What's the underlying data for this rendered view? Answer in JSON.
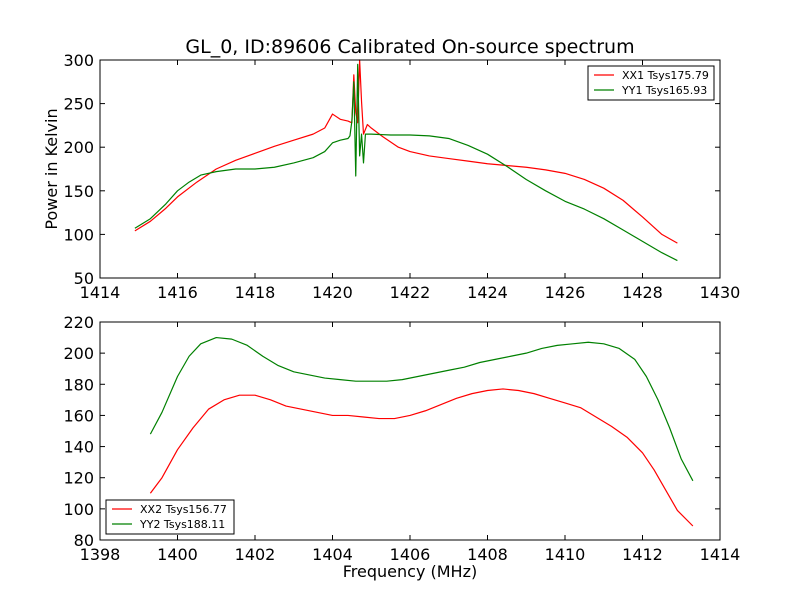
{
  "chart_data": [
    {
      "type": "line",
      "title": "GL_0, ID:89606 Calibrated On-source spectrum",
      "xlabel": "",
      "ylabel": "Power in Kelvin",
      "xlim": [
        1414,
        1430
      ],
      "ylim": [
        50,
        300
      ],
      "xticks": [
        1414,
        1416,
        1418,
        1420,
        1422,
        1424,
        1426,
        1428,
        1430
      ],
      "yticks": [
        50,
        100,
        150,
        200,
        250,
        300
      ],
      "grid": false,
      "legend": "top-right",
      "series": [
        {
          "name": "XX1 Tsys175.79",
          "color": "#ff0000",
          "points": [
            [
              1414.9,
              104
            ],
            [
              1415.3,
              115
            ],
            [
              1415.7,
              130
            ],
            [
              1416.0,
              143
            ],
            [
              1416.5,
              160
            ],
            [
              1417.0,
              175
            ],
            [
              1417.5,
              185
            ],
            [
              1418.0,
              193
            ],
            [
              1418.5,
              201
            ],
            [
              1419.0,
              208
            ],
            [
              1419.5,
              215
            ],
            [
              1419.8,
              222
            ],
            [
              1420.0,
              238
            ],
            [
              1420.2,
              232
            ],
            [
              1420.4,
              230
            ],
            [
              1420.5,
              228
            ],
            [
              1420.55,
              283
            ],
            [
              1420.6,
              240
            ],
            [
              1420.65,
              228
            ],
            [
              1420.7,
              300
            ],
            [
              1420.75,
              252
            ],
            [
              1420.8,
              215
            ],
            [
              1420.9,
              226
            ],
            [
              1421.0,
              222
            ],
            [
              1421.3,
              212
            ],
            [
              1421.7,
              200
            ],
            [
              1422.0,
              195
            ],
            [
              1422.5,
              190
            ],
            [
              1423.0,
              187
            ],
            [
              1423.5,
              184
            ],
            [
              1424.0,
              181
            ],
            [
              1424.5,
              179
            ],
            [
              1425.0,
              177
            ],
            [
              1425.5,
              174
            ],
            [
              1426.0,
              170
            ],
            [
              1426.5,
              163
            ],
            [
              1427.0,
              153
            ],
            [
              1427.5,
              139
            ],
            [
              1428.0,
              120
            ],
            [
              1428.5,
              100
            ],
            [
              1428.9,
              90
            ]
          ]
        },
        {
          "name": "YY1 Tsys165.93",
          "color": "#008000",
          "points": [
            [
              1414.9,
              107
            ],
            [
              1415.3,
              118
            ],
            [
              1415.7,
              135
            ],
            [
              1416.0,
              150
            ],
            [
              1416.3,
              160
            ],
            [
              1416.6,
              168
            ],
            [
              1417.0,
              172
            ],
            [
              1417.5,
              175
            ],
            [
              1418.0,
              175
            ],
            [
              1418.5,
              177
            ],
            [
              1419.0,
              182
            ],
            [
              1419.5,
              188
            ],
            [
              1419.8,
              195
            ],
            [
              1420.0,
              205
            ],
            [
              1420.2,
              208
            ],
            [
              1420.4,
              210
            ],
            [
              1420.45,
              213
            ],
            [
              1420.5,
              230
            ],
            [
              1420.55,
              275
            ],
            [
              1420.6,
              167
            ],
            [
              1420.65,
              295
            ],
            [
              1420.7,
              190
            ],
            [
              1420.75,
              215
            ],
            [
              1420.8,
              182
            ],
            [
              1420.85,
              215
            ],
            [
              1421.0,
              215
            ],
            [
              1421.5,
              214
            ],
            [
              1422.0,
              214
            ],
            [
              1422.5,
              213
            ],
            [
              1423.0,
              210
            ],
            [
              1423.5,
              202
            ],
            [
              1424.0,
              192
            ],
            [
              1424.5,
              178
            ],
            [
              1425.0,
              163
            ],
            [
              1425.5,
              150
            ],
            [
              1426.0,
              138
            ],
            [
              1426.5,
              129
            ],
            [
              1427.0,
              118
            ],
            [
              1427.5,
              105
            ],
            [
              1428.0,
              92
            ],
            [
              1428.5,
              79
            ],
            [
              1428.9,
              70
            ]
          ]
        }
      ]
    },
    {
      "type": "line",
      "title": "",
      "xlabel": "Frequency (MHz)",
      "ylabel": "",
      "xlim": [
        1398,
        1414
      ],
      "ylim": [
        80,
        220
      ],
      "xticks": [
        1398,
        1400,
        1402,
        1404,
        1406,
        1408,
        1410,
        1412,
        1414
      ],
      "yticks": [
        80,
        100,
        120,
        140,
        160,
        180,
        200,
        220
      ],
      "grid": false,
      "legend": "bottom-left",
      "series": [
        {
          "name": "XX2 Tsys156.77",
          "color": "#ff0000",
          "points": [
            [
              1399.3,
              110
            ],
            [
              1399.6,
              120
            ],
            [
              1400.0,
              138
            ],
            [
              1400.4,
              152
            ],
            [
              1400.8,
              164
            ],
            [
              1401.2,
              170
            ],
            [
              1401.6,
              173
            ],
            [
              1402.0,
              173
            ],
            [
              1402.4,
              170
            ],
            [
              1402.8,
              166
            ],
            [
              1403.2,
              164
            ],
            [
              1403.6,
              162
            ],
            [
              1404.0,
              160
            ],
            [
              1404.4,
              160
            ],
            [
              1404.8,
              159
            ],
            [
              1405.2,
              158
            ],
            [
              1405.6,
              158
            ],
            [
              1406.0,
              160
            ],
            [
              1406.4,
              163
            ],
            [
              1406.8,
              167
            ],
            [
              1407.2,
              171
            ],
            [
              1407.6,
              174
            ],
            [
              1408.0,
              176
            ],
            [
              1408.4,
              177
            ],
            [
              1408.8,
              176
            ],
            [
              1409.2,
              174
            ],
            [
              1409.6,
              171
            ],
            [
              1410.0,
              168
            ],
            [
              1410.4,
              165
            ],
            [
              1410.8,
              159
            ],
            [
              1411.2,
              153
            ],
            [
              1411.6,
              146
            ],
            [
              1412.0,
              136
            ],
            [
              1412.3,
              125
            ],
            [
              1412.6,
              112
            ],
            [
              1412.9,
              99
            ],
            [
              1413.3,
              89
            ]
          ]
        },
        {
          "name": "YY2 Tsys188.11",
          "color": "#008000",
          "points": [
            [
              1399.3,
              148
            ],
            [
              1399.6,
              162
            ],
            [
              1400.0,
              185
            ],
            [
              1400.3,
              198
            ],
            [
              1400.6,
              206
            ],
            [
              1401.0,
              210
            ],
            [
              1401.4,
              209
            ],
            [
              1401.8,
              205
            ],
            [
              1402.2,
              198
            ],
            [
              1402.6,
              192
            ],
            [
              1403.0,
              188
            ],
            [
              1403.4,
              186
            ],
            [
              1403.8,
              184
            ],
            [
              1404.2,
              183
            ],
            [
              1404.6,
              182
            ],
            [
              1405.0,
              182
            ],
            [
              1405.4,
              182
            ],
            [
              1405.8,
              183
            ],
            [
              1406.2,
              185
            ],
            [
              1406.6,
              187
            ],
            [
              1407.0,
              189
            ],
            [
              1407.4,
              191
            ],
            [
              1407.8,
              194
            ],
            [
              1408.2,
              196
            ],
            [
              1408.6,
              198
            ],
            [
              1409.0,
              200
            ],
            [
              1409.4,
              203
            ],
            [
              1409.8,
              205
            ],
            [
              1410.2,
              206
            ],
            [
              1410.6,
              207
            ],
            [
              1411.0,
              206
            ],
            [
              1411.4,
              203
            ],
            [
              1411.8,
              196
            ],
            [
              1412.1,
              185
            ],
            [
              1412.4,
              170
            ],
            [
              1412.7,
              152
            ],
            [
              1413.0,
              132
            ],
            [
              1413.3,
              118
            ]
          ]
        }
      ]
    }
  ]
}
